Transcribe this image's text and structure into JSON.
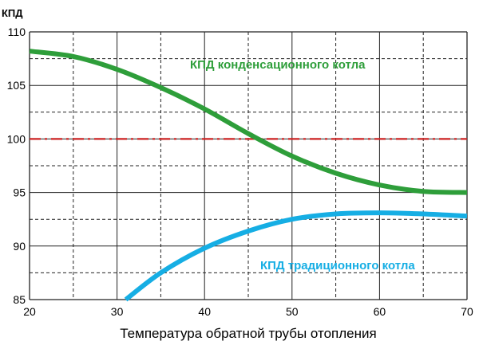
{
  "chart_data": {
    "type": "line",
    "title": "",
    "xlabel": "Температура обратной трубы отопления",
    "ylabel": "КПД",
    "xlim": [
      20,
      70
    ],
    "ylim": [
      85,
      110
    ],
    "x_ticks": [
      20,
      30,
      40,
      50,
      60,
      70
    ],
    "y_ticks": [
      85,
      90,
      95,
      100,
      105,
      110
    ],
    "x_tick_labels": [
      "20",
      "30",
      "40",
      "50",
      "60",
      "70"
    ],
    "y_tick_labels": [
      "85",
      "90",
      "95",
      "100",
      "105",
      "110"
    ],
    "grid": true,
    "legend": "none",
    "reference_line": {
      "y": 100,
      "color": "#cc2222"
    },
    "series": [
      {
        "name": "КПД конденсационного котла",
        "color": "#2e9e3a",
        "x": [
          20,
          25,
          30,
          35,
          40,
          45,
          50,
          55,
          60,
          65,
          70
        ],
        "y": [
          108.2,
          107.7,
          106.5,
          104.8,
          102.8,
          100.5,
          98.4,
          96.8,
          95.7,
          95.1,
          95.0
        ]
      },
      {
        "name": "КПД традиционного котла",
        "color": "#16aee4",
        "x": [
          31,
          35,
          40,
          45,
          50,
          55,
          60,
          65,
          70
        ],
        "y": [
          85.0,
          87.5,
          89.8,
          91.4,
          92.5,
          93.0,
          93.1,
          93.0,
          92.8
        ]
      }
    ]
  }
}
